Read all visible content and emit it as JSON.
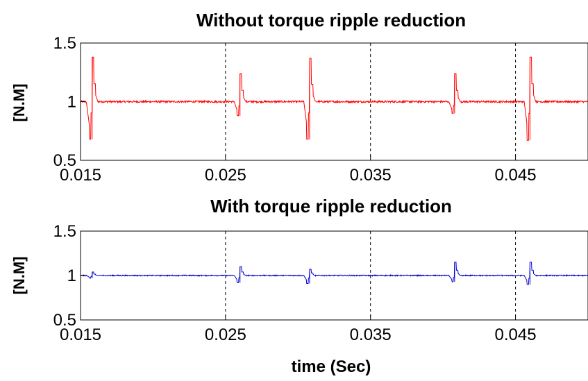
{
  "chart_data": [
    {
      "type": "line",
      "title": "Without torque ripple reduction",
      "xlabel": "",
      "ylabel": "[N.M]",
      "xlim": [
        0.015,
        0.05
      ],
      "ylim": [
        0.5,
        1.5
      ],
      "xticks": [
        0.015,
        0.025,
        0.035,
        0.045
      ],
      "xtick_labels": [
        "0.015",
        "0.025",
        "0.035",
        "0.045"
      ],
      "yticks": [
        0.5,
        1,
        1.5
      ],
      "ytick_labels": [
        "0.5",
        "1",
        "1.5"
      ],
      "grid": "vertical dashed at x ticks",
      "color": "#ff0000",
      "baseline": 1.0,
      "series": [
        {
          "values_description": "constant ~1.0 with small high-frequency noise and spikes",
          "spikes": [
            {
              "x": 0.0158,
              "min": 0.68,
              "max": 1.38
            },
            {
              "x": 0.026,
              "min": 0.88,
              "max": 1.24
            },
            {
              "x": 0.0308,
              "min": 0.68,
              "max": 1.37
            },
            {
              "x": 0.0408,
              "min": 0.9,
              "max": 1.24
            },
            {
              "x": 0.046,
              "min": 0.67,
              "max": 1.38
            }
          ]
        }
      ]
    },
    {
      "type": "line",
      "title": "With torque ripple reduction",
      "xlabel": "time (Sec)",
      "ylabel": "[N.M]",
      "xlim": [
        0.015,
        0.05
      ],
      "ylim": [
        0.5,
        1.5
      ],
      "xticks": [
        0.015,
        0.025,
        0.035,
        0.045
      ],
      "xtick_labels": [
        "0.015",
        "0.025",
        "0.035",
        "0.045"
      ],
      "yticks": [
        0.5,
        1,
        1.5
      ],
      "ytick_labels": [
        "0.5",
        "1",
        "1.5"
      ],
      "grid": "vertical dashed at x ticks",
      "color": "#0000cc",
      "baseline": 1.0,
      "series": [
        {
          "values_description": "constant ~1.0 with small high-frequency noise and small spikes",
          "spikes": [
            {
              "x": 0.0158,
              "min": 0.97,
              "max": 1.04
            },
            {
              "x": 0.026,
              "min": 0.92,
              "max": 1.1
            },
            {
              "x": 0.0308,
              "min": 0.91,
              "max": 1.07
            },
            {
              "x": 0.0408,
              "min": 0.93,
              "max": 1.15
            },
            {
              "x": 0.046,
              "min": 0.9,
              "max": 1.15
            }
          ]
        }
      ]
    }
  ]
}
